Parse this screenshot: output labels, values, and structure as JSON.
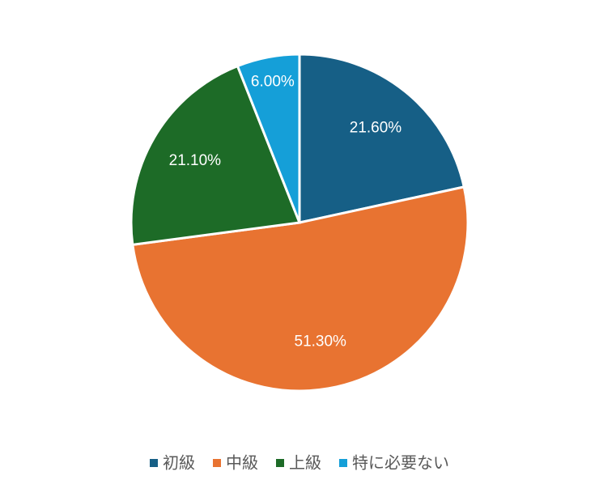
{
  "chart_data": {
    "type": "pie",
    "categories": [
      "初級",
      "中級",
      "上級",
      "特に必要ない"
    ],
    "values": [
      21.6,
      51.3,
      21.1,
      6.0
    ],
    "value_labels": [
      "21.60%",
      "51.30%",
      "21.10%",
      "6.00%"
    ],
    "colors": [
      "#165f86",
      "#e87331",
      "#1d6b27",
      "#159fd8"
    ],
    "legend": "bottom"
  }
}
